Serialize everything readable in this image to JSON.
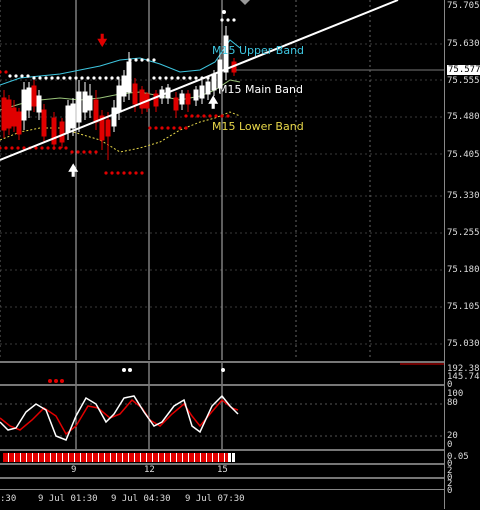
{
  "price_axis": {
    "labels": [
      "75.705",
      "75.630",
      "75.555",
      "75.480",
      "75.405",
      "75.330",
      "75.255",
      "75.180",
      "75.105",
      "75.030"
    ],
    "current_price": "75.577"
  },
  "band_labels": {
    "upper": "M15 Upper Band",
    "main": "M15 Main Band",
    "lower": "M15 Lower Band"
  },
  "indicator_axis": {
    "top": "192.38",
    "second": "145.74",
    "zero": "0"
  },
  "stoch_axis": {
    "l100": "100",
    "l80": "80",
    "l20": "20",
    "l0": "0"
  },
  "bar_axis": {
    "v1": "0.05",
    "v2": "0",
    "v3": "2",
    "v4": "0",
    "v5": "2",
    "v6": "0"
  },
  "bar_scale": {
    "n9": "9",
    "n12": "12",
    "n15": "15"
  },
  "time_axis": {
    "t0": ":30",
    "t1": "9 Jul 01:30",
    "t2": "9 Jul 04:30",
    "t3": "9 Jul 07:30"
  },
  "colors": {
    "bull": "#ffffff",
    "bear": "#e00000",
    "upper_band": "#3ec6e0",
    "lower_band": "#e8d84a",
    "stoch_main": "#ffffff",
    "stoch_signal": "#e00000",
    "grid": "#3a3a3a"
  },
  "icons": {
    "buy_arrow": "arrow-up",
    "sell_arrow": "arrow-down"
  }
}
